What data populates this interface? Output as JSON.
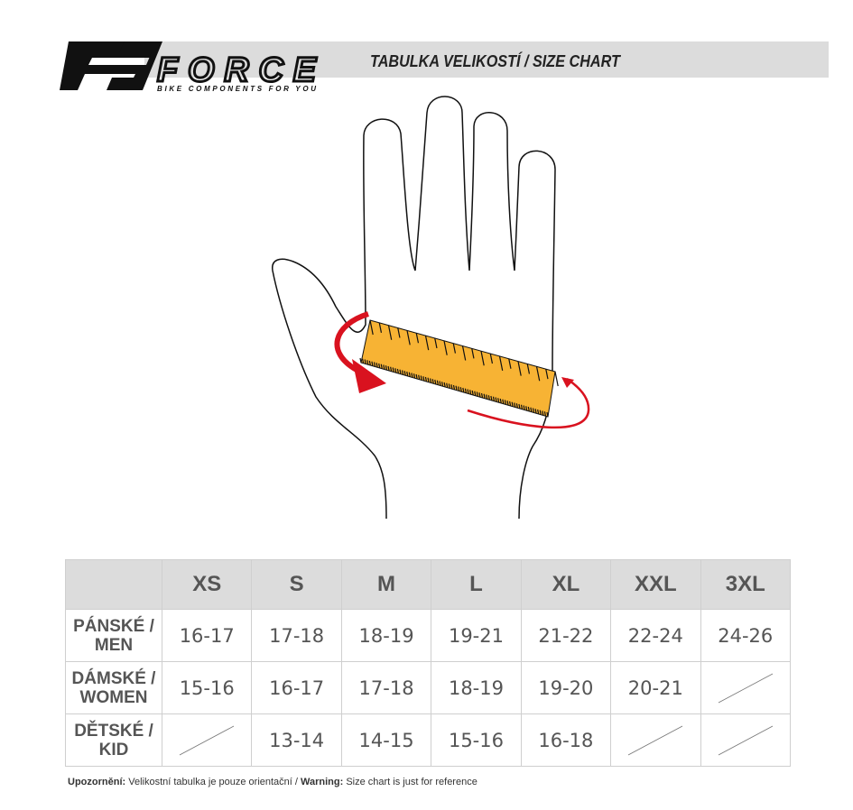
{
  "brand": {
    "name": "FORCE",
    "tagline": "BIKE COMPONENTS FOR YOU"
  },
  "title": "TABULKA VELIKOSTÍ / SIZE CHART",
  "colors": {
    "banner": "#dcdcdc",
    "ruler": "#f7b334",
    "arrow": "#d9121f"
  },
  "table": {
    "sizes": [
      "XS",
      "S",
      "M",
      "L",
      "XL",
      "XXL",
      "3XL"
    ],
    "rows": [
      {
        "label1": "PÁNSKÉ /",
        "label2": "MEN",
        "values": [
          "16-17",
          "17-18",
          "18-19",
          "19-21",
          "21-22",
          "22-24",
          "24-26"
        ]
      },
      {
        "label1": "DÁMSKÉ /",
        "label2": "WOMEN",
        "values": [
          "15-16",
          "16-17",
          "17-18",
          "18-19",
          "19-20",
          "20-21",
          null
        ]
      },
      {
        "label1": "DĚTSKÉ /",
        "label2": "KID",
        "values": [
          null,
          "13-14",
          "14-15",
          "15-16",
          "16-18",
          null,
          null
        ]
      }
    ]
  },
  "note": {
    "cz_label": "Upozornění:",
    "cz_text": " Velikostní tabulka je pouze orientační / ",
    "en_label": "Warning:",
    "en_text": " Size chart is just for reference"
  }
}
